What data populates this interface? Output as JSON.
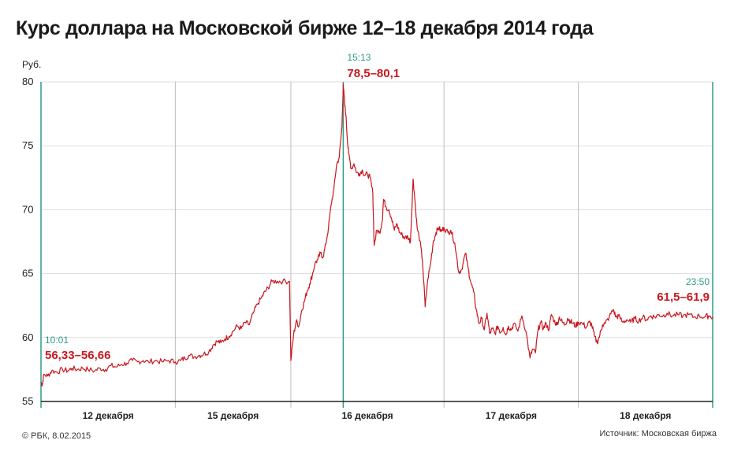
{
  "title": "Курс доллара на Московской бирже 12–18 декабря 2014 года",
  "footer": {
    "copyright": "© РБК, 8.02.2015",
    "source": "Источник: Московская биржа"
  },
  "colors": {
    "line": "#c8171e",
    "accent": "#2e9e86",
    "label_red": "#c8171e",
    "grid": "#dddddd",
    "axis": "#222222"
  },
  "chart_data": {
    "type": "line",
    "title": "Курс доллара на Московской бирже 12–18 декабря 2014 года",
    "ylabel": "Руб.",
    "xlabel": "",
    "ylim": [
      55,
      80
    ],
    "yticks": [
      55,
      60,
      65,
      70,
      75,
      80
    ],
    "grid": true,
    "days": [
      {
        "label": "12 декабря",
        "start": 0,
        "end": 1
      },
      {
        "label": "15 декабря",
        "start": 1,
        "end": 1.86
      },
      {
        "label": "16 декабря",
        "start": 1.86,
        "end": 3
      },
      {
        "label": "17 декабря",
        "start": 3,
        "end": 4
      },
      {
        "label": "18 декабря",
        "start": 4,
        "end": 5
      }
    ],
    "annotations": [
      {
        "time": "10:01",
        "value": "56,33–56,66",
        "x": 0
      },
      {
        "time": "15:13",
        "value": "78,5–80,1",
        "x": 2.25
      },
      {
        "time": "23:50",
        "value": "61,5–61,9",
        "x": 5
      }
    ],
    "series": [
      {
        "values": [
          [
            0.0,
            56.5
          ],
          [
            0.01,
            56.3
          ],
          [
            0.02,
            57.1
          ],
          [
            0.05,
            57.0
          ],
          [
            0.08,
            57.4
          ],
          [
            0.12,
            57.3
          ],
          [
            0.16,
            57.5
          ],
          [
            0.2,
            57.4
          ],
          [
            0.23,
            57.6
          ],
          [
            0.27,
            57.5
          ],
          [
            0.31,
            57.6
          ],
          [
            0.35,
            57.5
          ],
          [
            0.4,
            57.4
          ],
          [
            0.44,
            57.6
          ],
          [
            0.48,
            57.5
          ],
          [
            0.52,
            57.8
          ],
          [
            0.56,
            57.7
          ],
          [
            0.6,
            57.9
          ],
          [
            0.64,
            58.0
          ],
          [
            0.68,
            58.2
          ],
          [
            0.72,
            58.1
          ],
          [
            0.76,
            58.2
          ],
          [
            0.8,
            58.1
          ],
          [
            0.85,
            58.2
          ],
          [
            0.9,
            58.1
          ],
          [
            0.95,
            58.2
          ],
          [
            1.0,
            58.1
          ],
          [
            1.04,
            58.2
          ],
          [
            1.07,
            58.4
          ],
          [
            1.1,
            58.6
          ],
          [
            1.14,
            58.5
          ],
          [
            1.18,
            58.6
          ],
          [
            1.21,
            58.7
          ],
          [
            1.25,
            58.9
          ],
          [
            1.28,
            59.4
          ],
          [
            1.31,
            59.7
          ],
          [
            1.34,
            59.6
          ],
          [
            1.37,
            59.9
          ],
          [
            1.4,
            60.1
          ],
          [
            1.43,
            60.5
          ],
          [
            1.46,
            60.9
          ],
          [
            1.49,
            60.7
          ],
          [
            1.52,
            61.2
          ],
          [
            1.55,
            61.0
          ],
          [
            1.58,
            61.9
          ],
          [
            1.61,
            62.6
          ],
          [
            1.64,
            63.1
          ],
          [
            1.67,
            63.6
          ],
          [
            1.69,
            63.9
          ],
          [
            1.72,
            64.4
          ],
          [
            1.76,
            64.4
          ],
          [
            1.8,
            64.4
          ],
          [
            1.85,
            64.4
          ],
          [
            1.86,
            58.2
          ],
          [
            1.88,
            60.2
          ],
          [
            1.9,
            61.3
          ],
          [
            1.92,
            60.9
          ],
          [
            1.94,
            62.1
          ],
          [
            1.96,
            62.8
          ],
          [
            1.98,
            63.6
          ],
          [
            2.0,
            64.2
          ],
          [
            2.02,
            64.9
          ],
          [
            2.04,
            65.8
          ],
          [
            2.06,
            66.1
          ],
          [
            2.08,
            66.6
          ],
          [
            2.1,
            66.3
          ],
          [
            2.12,
            67.3
          ],
          [
            2.14,
            68.6
          ],
          [
            2.16,
            70.4
          ],
          [
            2.18,
            71.6
          ],
          [
            2.2,
            73.5
          ],
          [
            2.22,
            74.1
          ],
          [
            2.24,
            76.4
          ],
          [
            2.25,
            79.8
          ],
          [
            2.26,
            78.3
          ],
          [
            2.27,
            77.4
          ],
          [
            2.28,
            75.6
          ],
          [
            2.29,
            74.4
          ],
          [
            2.31,
            73.2
          ],
          [
            2.33,
            73.6
          ],
          [
            2.35,
            72.9
          ],
          [
            2.37,
            72.8
          ],
          [
            2.39,
            73.1
          ],
          [
            2.41,
            72.7
          ],
          [
            2.43,
            72.8
          ],
          [
            2.45,
            72.5
          ],
          [
            2.47,
            71.3
          ],
          [
            2.48,
            67.2
          ],
          [
            2.5,
            68.4
          ],
          [
            2.52,
            68.2
          ],
          [
            2.54,
            69.1
          ],
          [
            2.55,
            70.8
          ],
          [
            2.57,
            70.2
          ],
          [
            2.59,
            70.0
          ],
          [
            2.61,
            69.3
          ],
          [
            2.63,
            68.4
          ],
          [
            2.65,
            68.9
          ],
          [
            2.67,
            68.2
          ],
          [
            2.69,
            68.0
          ],
          [
            2.71,
            67.8
          ],
          [
            2.73,
            67.9
          ],
          [
            2.75,
            67.5
          ],
          [
            2.77,
            72.4
          ],
          [
            2.78,
            71.2
          ],
          [
            2.8,
            68.6
          ],
          [
            2.82,
            67.6
          ],
          [
            2.84,
            66.0
          ],
          [
            2.86,
            62.4
          ],
          [
            2.88,
            64.6
          ],
          [
            2.9,
            65.8
          ],
          [
            2.92,
            67.5
          ],
          [
            2.94,
            68.2
          ],
          [
            2.96,
            68.6
          ],
          [
            2.98,
            68.3
          ],
          [
            3.0,
            68.6
          ],
          [
            3.03,
            68.2
          ],
          [
            3.05,
            68.4
          ],
          [
            3.08,
            67.4
          ],
          [
            3.11,
            65.1
          ],
          [
            3.13,
            65.3
          ],
          [
            3.16,
            66.6
          ],
          [
            3.18,
            65.4
          ],
          [
            3.2,
            64.3
          ],
          [
            3.22,
            63.6
          ],
          [
            3.24,
            62.2
          ],
          [
            3.26,
            61.1
          ],
          [
            3.28,
            61.5
          ],
          [
            3.3,
            60.6
          ],
          [
            3.32,
            61.9
          ],
          [
            3.34,
            60.3
          ],
          [
            3.36,
            60.7
          ],
          [
            3.38,
            60.3
          ],
          [
            3.4,
            60.9
          ],
          [
            3.42,
            60.4
          ],
          [
            3.44,
            60.8
          ],
          [
            3.46,
            60.2
          ],
          [
            3.48,
            60.9
          ],
          [
            3.5,
            60.6
          ],
          [
            3.52,
            61.1
          ],
          [
            3.55,
            60.5
          ],
          [
            3.58,
            61.7
          ],
          [
            3.61,
            60.5
          ],
          [
            3.64,
            58.4
          ],
          [
            3.66,
            59.1
          ],
          [
            3.68,
            58.8
          ],
          [
            3.7,
            60.6
          ],
          [
            3.72,
            61.2
          ],
          [
            3.74,
            60.7
          ],
          [
            3.76,
            61.1
          ],
          [
            3.78,
            60.6
          ],
          [
            3.8,
            61.8
          ],
          [
            3.82,
            61.3
          ],
          [
            3.84,
            61.0
          ],
          [
            3.86,
            61.6
          ],
          [
            3.88,
            61.2
          ],
          [
            3.9,
            61.0
          ],
          [
            3.92,
            61.5
          ],
          [
            3.94,
            61.3
          ],
          [
            3.96,
            61.1
          ],
          [
            3.98,
            60.9
          ],
          [
            4.0,
            61.2
          ],
          [
            4.03,
            61.1
          ],
          [
            4.06,
            60.8
          ],
          [
            4.08,
            61.2
          ],
          [
            4.1,
            61.0
          ],
          [
            4.12,
            60.1
          ],
          [
            4.14,
            59.6
          ],
          [
            4.16,
            60.2
          ],
          [
            4.18,
            61.0
          ],
          [
            4.2,
            61.1
          ],
          [
            4.23,
            61.6
          ],
          [
            4.26,
            62.2
          ],
          [
            4.28,
            61.6
          ],
          [
            4.3,
            61.7
          ],
          [
            4.33,
            61.2
          ],
          [
            4.36,
            61.4
          ],
          [
            4.39,
            61.2
          ],
          [
            4.42,
            61.5
          ],
          [
            4.45,
            61.3
          ],
          [
            4.48,
            61.6
          ],
          [
            4.51,
            61.4
          ],
          [
            4.54,
            61.7
          ],
          [
            4.57,
            61.6
          ],
          [
            4.6,
            61.8
          ],
          [
            4.63,
            61.7
          ],
          [
            4.66,
            61.9
          ],
          [
            4.7,
            61.7
          ],
          [
            4.74,
            61.8
          ],
          [
            4.78,
            61.7
          ],
          [
            4.82,
            61.8
          ],
          [
            4.86,
            61.6
          ],
          [
            4.9,
            61.7
          ],
          [
            4.94,
            61.6
          ],
          [
            4.97,
            61.7
          ],
          [
            5.0,
            61.6
          ]
        ]
      }
    ]
  }
}
